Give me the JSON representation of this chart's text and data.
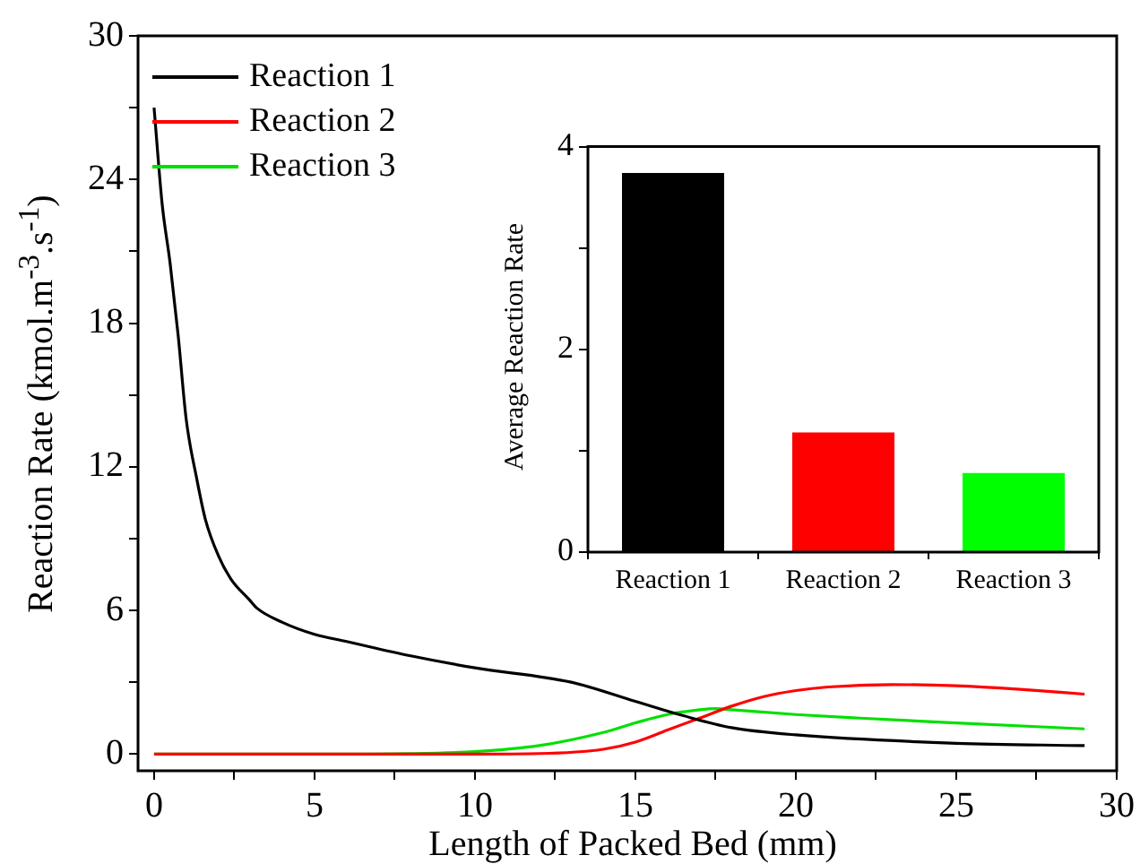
{
  "chart_data": [
    {
      "type": "line",
      "xlabel": "Length of Packed Bed (mm)",
      "ylabel": "Reaction Rate (kmol.m$^{-3}$.s$^{-1}$)",
      "xlim": [
        -0.5,
        30
      ],
      "ylim": [
        -0.7,
        30
      ],
      "xticks": [
        0,
        {
          "value": 2.5,
          "label": null
        },
        5,
        {
          "value": 7.5,
          "label": null
        },
        10,
        {
          "value": 12.5,
          "label": null
        },
        15,
        {
          "value": 17.5,
          "label": null
        },
        20,
        {
          "value": 22.5,
          "label": null
        },
        25,
        {
          "value": 27.5,
          "label": null
        },
        30
      ],
      "yticks": [
        0,
        {
          "value": 3,
          "label": null
        },
        6,
        {
          "value": 9,
          "label": null
        },
        12,
        {
          "value": 15,
          "label": null
        },
        18,
        {
          "value": 21,
          "label": null
        },
        24,
        {
          "value": 27,
          "label": null
        },
        30
      ],
      "grid": false,
      "legend": "top left",
      "line_style": "solid",
      "marker": "none",
      "series": [
        {
          "name": "Reaction 1",
          "color": "#000000",
          "x": [
            0,
            0.25,
            0.5,
            0.75,
            1,
            1.33,
            1.6,
            2,
            2.4,
            3,
            3.2,
            4,
            5,
            6,
            8,
            10,
            13,
            15,
            16.5,
            18,
            20,
            25,
            29
          ],
          "values": [
            27,
            23,
            20.5,
            17.5,
            14,
            11.5,
            9.8,
            8.3,
            7.3,
            6.4,
            6.1,
            5.5,
            5,
            4.7,
            4.1,
            3.6,
            3,
            2.2,
            1.6,
            1.1,
            0.8,
            0.45,
            0.35
          ]
        },
        {
          "name": "Reaction 2",
          "color": "#ff0000",
          "x": [
            0,
            5,
            10,
            12,
            14,
            15,
            16,
            17,
            18,
            19,
            20,
            21,
            23,
            25,
            27,
            29
          ],
          "values": [
            0,
            0,
            0,
            0.02,
            0.2,
            0.5,
            1,
            1.5,
            2,
            2.4,
            2.65,
            2.8,
            2.9,
            2.85,
            2.7,
            2.5
          ]
        },
        {
          "name": "Reaction 3",
          "color": "#00e000",
          "x": [
            0,
            5,
            8,
            10,
            12,
            14,
            15,
            16,
            17,
            17.5,
            18,
            20,
            22,
            25,
            29
          ],
          "values": [
            0,
            0,
            0.02,
            0.1,
            0.35,
            0.9,
            1.3,
            1.65,
            1.85,
            1.9,
            1.85,
            1.65,
            1.5,
            1.3,
            1.05
          ]
        }
      ]
    },
    {
      "type": "bar",
      "ylabel": "Average Reaction Rate",
      "categories": [
        "Reaction 1",
        "Reaction 2",
        "Reaction 3"
      ],
      "values": [
        3.74,
        1.18,
        0.78
      ],
      "colors": [
        "#000000",
        "#ff0000",
        "#00ff00"
      ],
      "ylim": [
        0,
        4
      ],
      "yticks": [
        0,
        {
          "value": 1,
          "label": null
        },
        2,
        {
          "value": 3,
          "label": null
        },
        4
      ],
      "grid": false,
      "legend": false
    }
  ]
}
